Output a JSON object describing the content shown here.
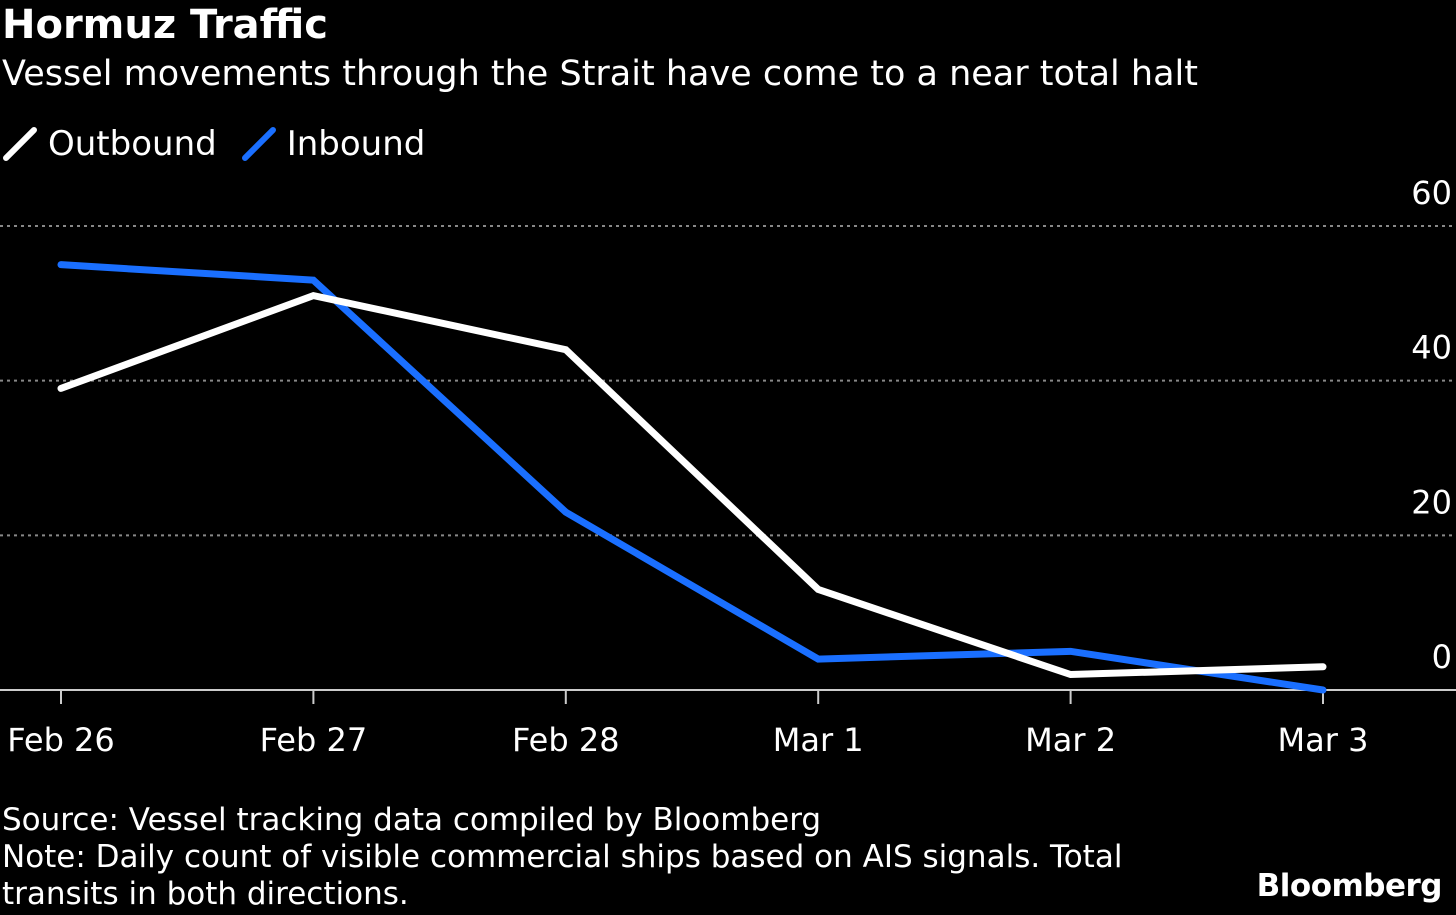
{
  "title": "Hormuz Traffic",
  "subtitle": "Vessel movements through the Strait have come to a near total halt",
  "source": "Source: Vessel tracking data compiled by Bloomberg",
  "note": "Note: Daily count of visible commercial ships based on AIS signals. Total transits in both directions.",
  "brand": "Bloomberg",
  "chart_data": {
    "type": "line",
    "title": "Hormuz Traffic",
    "categories": [
      "Feb 26",
      "Feb 27",
      "Feb 28",
      "Mar 1",
      "Mar 2",
      "Mar 3"
    ],
    "series": [
      {
        "name": "Outbound",
        "color": "#ffffff",
        "values": [
          39,
          51,
          44,
          13,
          2,
          3
        ]
      },
      {
        "name": "Inbound",
        "color": "#1a6fff",
        "values": [
          55,
          53,
          23,
          4,
          5,
          0
        ]
      }
    ],
    "yticks": [
      "0",
      "20",
      "40",
      "60"
    ],
    "ylim": [
      0,
      60
    ],
    "grid": true,
    "y_axis_side": "right",
    "legend_placement": "top-left",
    "background": "#000000"
  }
}
